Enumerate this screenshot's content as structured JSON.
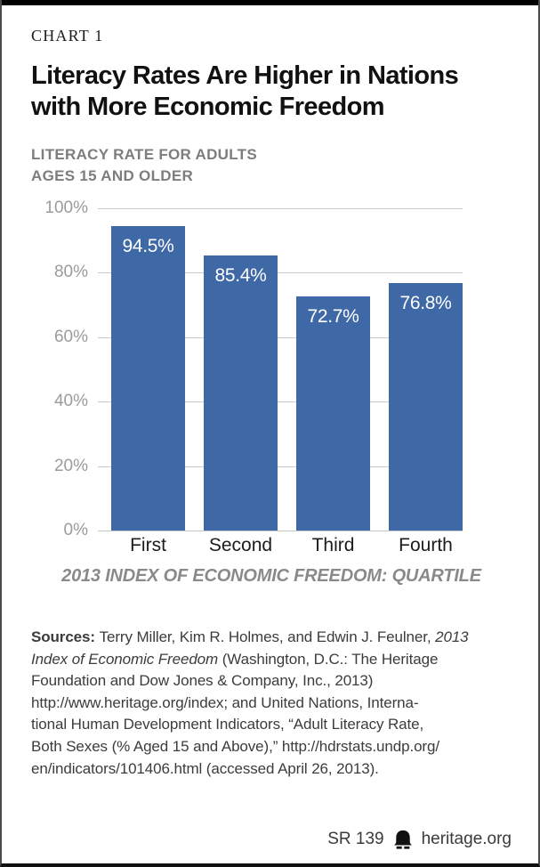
{
  "page": {
    "kicker": "CHART 1",
    "title_lines": [
      "Literacy Rates Are Higher in Nations",
      "with More Economic Freedom"
    ],
    "subtitle_lines": [
      "LITERACY RATE FOR ADULTS",
      "AGES 15 AND OLDER"
    ]
  },
  "chart_data": {
    "type": "bar",
    "title": "Literacy Rates Are Higher in Nations with More Economic Freedom",
    "subtitle": "Literacy Rate for Adults Ages 15 and Older",
    "categories": [
      "First",
      "Second",
      "Third",
      "Fourth"
    ],
    "values": [
      94.5,
      85.4,
      72.7,
      76.8
    ],
    "value_labels": [
      "94.5%",
      "85.4%",
      "72.7%",
      "76.8%"
    ],
    "xlabel": "2013 INDEX OF ECONOMIC FREEDOM: QUARTILE",
    "ylabel": "",
    "ylim": [
      0,
      100
    ],
    "ytick_labels": [
      "100%",
      "80%",
      "60%",
      "40%",
      "20%",
      "0%"
    ],
    "grid": true,
    "legend": "none",
    "bar_color": "#3e68a6",
    "value_label_color": "#ffffff"
  },
  "sources": {
    "lines": [
      [
        {
          "t": "Sources: ",
          "b": true
        },
        {
          "t": "Terry Miller, Kim R. Holmes, and Edwin J. Feulner, "
        },
        {
          "t": "2013",
          "i": true
        }
      ],
      [
        {
          "t": "Index of Economic Freedom",
          "i": true
        },
        {
          "t": " (Washington, D.C.: The Heritage"
        }
      ],
      [
        {
          "t": "Foundation and Dow Jones & Company, Inc., 2013)"
        }
      ],
      [
        {
          "t": "http://www.heritage.org/index; and United Nations, Interna-"
        }
      ],
      [
        {
          "t": "tional Human Development Indicators, “Adult Literacy Rate,"
        }
      ],
      [
        {
          "t": "Both Sexes (% Aged 15 and Above),” http://hdrstats.undp.org/"
        }
      ],
      [
        {
          "t": "en/indicators/101406.html (accessed April 26, 2013)."
        }
      ]
    ]
  },
  "footer": {
    "report_id": "SR 139",
    "site": "heritage.org",
    "logo_icon": "heritage-bell-icon"
  },
  "colors": {
    "bar": "#3e68a6",
    "grid": "#c9c9c9",
    "axis_text": "#9b9b9b",
    "subtitle_text": "#7d7d7d",
    "xlabel_text": "#8a8a8a",
    "top_bar": "#000000"
  }
}
